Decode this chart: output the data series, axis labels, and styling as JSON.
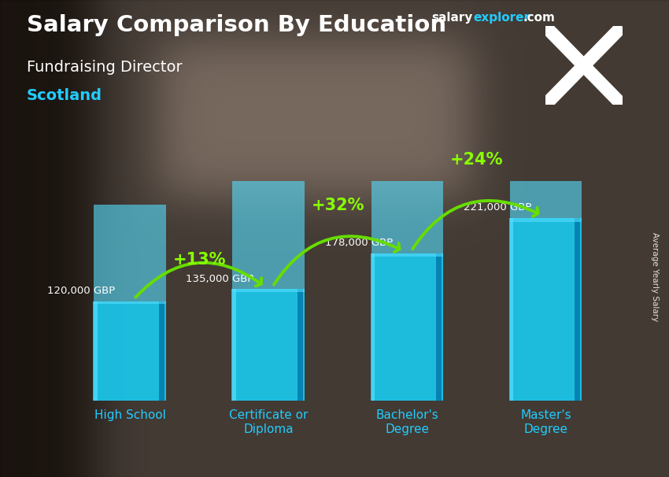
{
  "title_line1": "Salary Comparison By Education",
  "subtitle": "Fundraising Director",
  "location": "Scotland",
  "y_label": "Average Yearly Salary",
  "categories": [
    "High School",
    "Certificate or\nDiploma",
    "Bachelor's\nDegree",
    "Master's\nDegree"
  ],
  "values": [
    120000,
    135000,
    178000,
    221000
  ],
  "value_labels": [
    "120,000 GBP",
    "135,000 GBP",
    "178,000 GBP",
    "221,000 GBP"
  ],
  "pct_changes": [
    "+13%",
    "+32%",
    "+24%"
  ],
  "bar_color_main": "#1ac8ed",
  "bar_color_light": "#55dfff",
  "bar_color_dark": "#0899bb",
  "bar_color_side": "#0077aa",
  "title_color": "#ffffff",
  "subtitle_color": "#ffffff",
  "location_color": "#22ccff",
  "value_label_color": "#ffffff",
  "pct_color": "#88ff00",
  "arrow_color": "#66dd00",
  "xticklabel_color": "#22ccff",
  "salary_color": "#ffffff",
  "explorer_color": "#22ccff",
  "com_color": "#ffffff",
  "bar_width": 0.52,
  "ylim_max": 265000,
  "fig_width": 8.5,
  "fig_height": 6.06,
  "bg_colors": [
    "#3a2a1a",
    "#2a3a2a",
    "#1a2a3a",
    "#2a1a3a"
  ],
  "flag_bg": "#0033aa",
  "flag_cross": "#ffffff"
}
